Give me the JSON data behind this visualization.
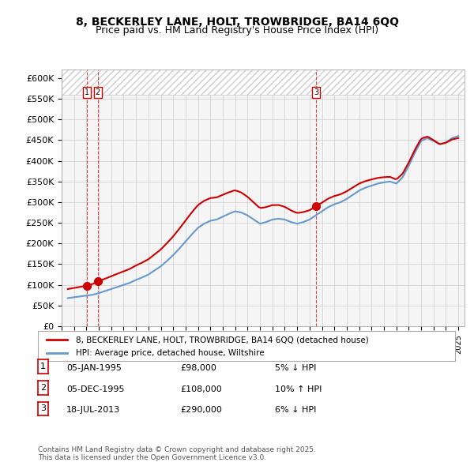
{
  "title1": "8, BECKERLEY LANE, HOLT, TROWBRIDGE, BA14 6QQ",
  "title2": "Price paid vs. HM Land Registry's House Price Index (HPI)",
  "address_label": "8, BECKERLEY LANE, HOLT, TROWBRIDGE, BA14 6QQ (detached house)",
  "hpi_label": "HPI: Average price, detached house, Wiltshire",
  "footer": "Contains HM Land Registry data © Crown copyright and database right 2025.\nThis data is licensed under the Open Government Licence v3.0.",
  "transactions": [
    {
      "num": 1,
      "date": "05-JAN-1995",
      "price": 98000,
      "pct": "5%",
      "dir": "↓",
      "x_year": 1995.03
    },
    {
      "num": 2,
      "date": "05-DEC-1995",
      "price": 108000,
      "pct": "10%",
      "dir": "↑",
      "x_year": 1995.92
    },
    {
      "num": 3,
      "date": "18-JUL-2013",
      "price": 290000,
      "pct": "6%",
      "dir": "↓",
      "x_year": 2013.54
    }
  ],
  "red_color": "#cc0000",
  "blue_color": "#6699cc",
  "hatch_color": "#dddddd",
  "grid_color": "#cccccc",
  "background_color": "#f5f5f5",
  "ylim": [
    0,
    620000
  ],
  "xlim": [
    1993,
    2025.5
  ],
  "yticks": [
    0,
    50000,
    100000,
    150000,
    200000,
    250000,
    300000,
    350000,
    400000,
    450000,
    500000,
    550000,
    600000
  ],
  "ytick_labels": [
    "£0",
    "£50K",
    "£100K",
    "£150K",
    "£200K",
    "£250K",
    "£300K",
    "£350K",
    "£400K",
    "£450K",
    "£500K",
    "£550K",
    "£600K"
  ],
  "hpi_years": [
    1993.5,
    1994,
    1994.5,
    1995,
    1995.5,
    1996,
    1996.5,
    1997,
    1997.5,
    1998,
    1998.5,
    1999,
    1999.5,
    2000,
    2000.5,
    2001,
    2001.5,
    2002,
    2002.5,
    2003,
    2003.5,
    2004,
    2004.5,
    2005,
    2005.5,
    2006,
    2006.5,
    2007,
    2007.5,
    2008,
    2008.5,
    2009,
    2009.5,
    2010,
    2010.5,
    2011,
    2011.5,
    2012,
    2012.5,
    2013,
    2013.5,
    2014,
    2014.5,
    2015,
    2015.5,
    2016,
    2016.5,
    2017,
    2017.5,
    2018,
    2018.5,
    2019,
    2019.5,
    2020,
    2020.5,
    2021,
    2021.5,
    2022,
    2022.5,
    2023,
    2023.5,
    2024,
    2024.5,
    2025
  ],
  "hpi_values": [
    68000,
    70000,
    72000,
    74000,
    76000,
    80000,
    85000,
    90000,
    95000,
    100000,
    105000,
    112000,
    118000,
    125000,
    135000,
    145000,
    158000,
    172000,
    188000,
    205000,
    222000,
    238000,
    248000,
    255000,
    258000,
    265000,
    272000,
    278000,
    275000,
    268000,
    258000,
    248000,
    252000,
    258000,
    260000,
    258000,
    252000,
    248000,
    252000,
    258000,
    268000,
    278000,
    288000,
    295000,
    300000,
    308000,
    318000,
    328000,
    335000,
    340000,
    345000,
    348000,
    350000,
    345000,
    360000,
    388000,
    420000,
    448000,
    455000,
    448000,
    440000,
    445000,
    455000,
    460000
  ],
  "red_years": [
    1995.03,
    1995.92,
    2013.54,
    2025.0
  ],
  "red_values": [
    98000,
    108000,
    290000,
    455000
  ]
}
